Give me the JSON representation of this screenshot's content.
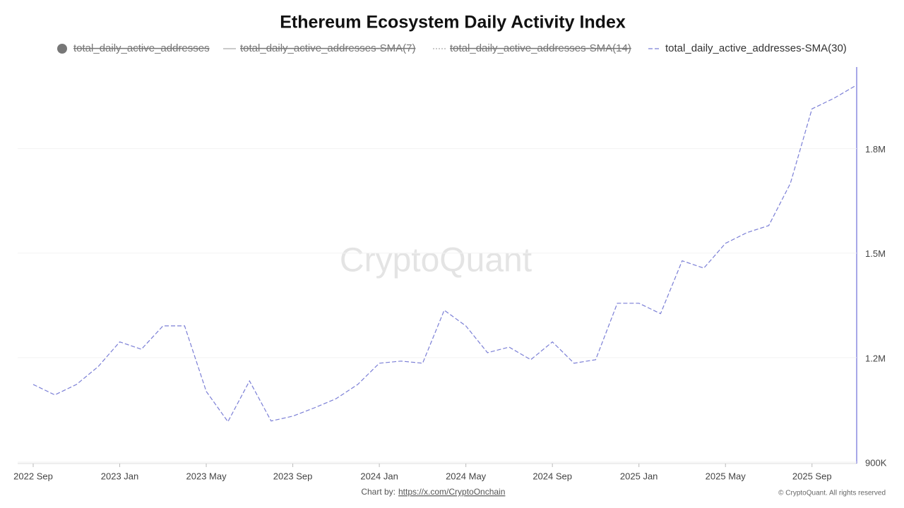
{
  "chart_data": {
    "type": "line",
    "title": "Ethereum Ecosystem Daily Activity Index",
    "watermark": "CryptoQuant",
    "credit_prefix": "Chart by:",
    "credit_link": "https://x.com/CryptoOnchain",
    "copyright": "© CryptoQuant. All rights reserved",
    "x": [
      "2022-09",
      "2022-10",
      "2022-11",
      "2022-12",
      "2023-01",
      "2023-02",
      "2023-03",
      "2023-04",
      "2023-05",
      "2023-06",
      "2023-07",
      "2023-08",
      "2023-09",
      "2023-10",
      "2023-11",
      "2023-12",
      "2024-01",
      "2024-02",
      "2024-03",
      "2024-04",
      "2024-05",
      "2024-06",
      "2024-07",
      "2024-08",
      "2024-09",
      "2024-10",
      "2024-11",
      "2024-12",
      "2025-01",
      "2025-02",
      "2025-03",
      "2025-04",
      "2025-05",
      "2025-06",
      "2025-07",
      "2025-08",
      "2025-09",
      "2025-10",
      "2025-11"
    ],
    "series": [
      {
        "name": "total_daily_active_addresses",
        "color": "#777777",
        "hidden": true
      },
      {
        "name": "total_daily_active_addresses-SMA(7)",
        "color": "#aaaaaa",
        "hidden": true
      },
      {
        "name": "total_daily_active_addresses-SMA(14)",
        "color": "#aaaaaa",
        "hidden": true
      },
      {
        "name": "total_daily_active_addresses-SMA(30)",
        "color": "#7b7fd6",
        "hidden": false,
        "values": [
          1123000,
          1093000,
          1123000,
          1174000,
          1245000,
          1224000,
          1291000,
          1291000,
          1103000,
          1016000,
          1133000,
          1018000,
          1032000,
          1056000,
          1082000,
          1123000,
          1184000,
          1190000,
          1184000,
          1336000,
          1291000,
          1214000,
          1230000,
          1194000,
          1245000,
          1184000,
          1194000,
          1356000,
          1356000,
          1326000,
          1478000,
          1457000,
          1528000,
          1559000,
          1579000,
          1700000,
          1914000,
          1944000,
          1980000
        ]
      }
    ],
    "xlim": [
      "2022-09",
      "2025-11"
    ],
    "xticks": [
      {
        "value": "2022-09",
        "label": "2022 Sep"
      },
      {
        "value": "2023-01",
        "label": "2023 Jan"
      },
      {
        "value": "2023-05",
        "label": "2023 May"
      },
      {
        "value": "2023-09",
        "label": "2023 Sep"
      },
      {
        "value": "2024-01",
        "label": "2024 Jan"
      },
      {
        "value": "2024-05",
        "label": "2024 May"
      },
      {
        "value": "2024-09",
        "label": "2024 Sep"
      },
      {
        "value": "2025-01",
        "label": "2025 Jan"
      },
      {
        "value": "2025-05",
        "label": "2025 May"
      },
      {
        "value": "2025-09",
        "label": "2025 Sep"
      }
    ],
    "ylim": [
      900000,
      2030000
    ],
    "yticks": [
      {
        "value": 900000,
        "label": "900K"
      },
      {
        "value": 1200000,
        "label": "1.2M"
      },
      {
        "value": 1500000,
        "label": "1.5M"
      },
      {
        "value": 1800000,
        "label": "1.8M"
      }
    ],
    "grid": true
  }
}
